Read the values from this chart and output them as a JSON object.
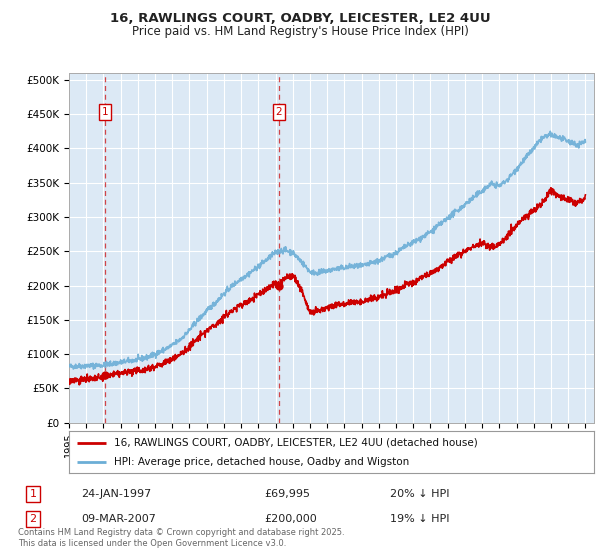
{
  "title_line1": "16, RAWLINGS COURT, OADBY, LEICESTER, LE2 4UU",
  "title_line2": "Price paid vs. HM Land Registry's House Price Index (HPI)",
  "background_color": "#dce9f5",
  "plot_bg_color": "#dce9f5",
  "grid_color": "#ffffff",
  "ylim": [
    0,
    510000
  ],
  "xlim_start": 1995.0,
  "xlim_end": 2025.5,
  "sale1_date": 1997.07,
  "sale1_price": 69995,
  "sale1_label": "1",
  "sale2_date": 2007.19,
  "sale2_price": 200000,
  "sale2_label": "2",
  "legend_line1": "16, RAWLINGS COURT, OADBY, LEICESTER, LE2 4UU (detached house)",
  "legend_line2": "HPI: Average price, detached house, Oadby and Wigston",
  "footer": "Contains HM Land Registry data © Crown copyright and database right 2025.\nThis data is licensed under the Open Government Licence v3.0.",
  "hpi_color": "#6baed6",
  "price_color": "#cc0000",
  "ytick_labels": [
    "£0",
    "£50K",
    "£100K",
    "£150K",
    "£200K",
    "£250K",
    "£300K",
    "£350K",
    "£400K",
    "£450K",
    "£500K"
  ],
  "ytick_values": [
    0,
    50000,
    100000,
    150000,
    200000,
    250000,
    300000,
    350000,
    400000,
    450000,
    500000
  ],
  "hpi_key_years": [
    1995.0,
    1995.5,
    1996.0,
    1996.5,
    1997.0,
    1997.5,
    1998.0,
    1998.5,
    1999.0,
    1999.5,
    2000.0,
    2000.5,
    2001.0,
    2001.5,
    2002.0,
    2002.5,
    2003.0,
    2003.5,
    2004.0,
    2004.5,
    2005.0,
    2005.5,
    2006.0,
    2006.5,
    2007.0,
    2007.5,
    2008.0,
    2008.5,
    2009.0,
    2009.5,
    2010.0,
    2010.5,
    2011.0,
    2011.5,
    2012.0,
    2012.5,
    2013.0,
    2013.5,
    2014.0,
    2014.5,
    2015.0,
    2015.5,
    2016.0,
    2016.5,
    2017.0,
    2017.5,
    2018.0,
    2018.5,
    2019.0,
    2019.5,
    2020.0,
    2020.5,
    2021.0,
    2021.5,
    2022.0,
    2022.5,
    2023.0,
    2023.5,
    2024.0,
    2024.5,
    2025.0
  ],
  "hpi_key_vals": [
    82000,
    82500,
    83000,
    83500,
    84000,
    86000,
    88000,
    90000,
    92000,
    95000,
    100000,
    106000,
    113000,
    122000,
    135000,
    150000,
    163000,
    175000,
    188000,
    200000,
    210000,
    218000,
    228000,
    238000,
    248000,
    252000,
    248000,
    235000,
    220000,
    218000,
    222000,
    224000,
    226000,
    228000,
    228000,
    232000,
    236000,
    242000,
    248000,
    256000,
    263000,
    270000,
    278000,
    288000,
    298000,
    308000,
    318000,
    328000,
    338000,
    348000,
    345000,
    355000,
    370000,
    385000,
    400000,
    415000,
    420000,
    415000,
    410000,
    405000,
    410000
  ],
  "price_key_years": [
    1995.0,
    1995.5,
    1996.0,
    1996.5,
    1997.0,
    1997.5,
    1998.0,
    1998.5,
    1999.0,
    1999.5,
    2000.0,
    2000.5,
    2001.0,
    2001.5,
    2002.0,
    2002.5,
    2003.0,
    2003.5,
    2004.0,
    2004.5,
    2005.0,
    2005.5,
    2006.0,
    2006.5,
    2007.0,
    2007.19,
    2007.5,
    2008.0,
    2008.5,
    2009.0,
    2009.5,
    2010.0,
    2010.5,
    2011.0,
    2011.5,
    2012.0,
    2012.5,
    2013.0,
    2013.5,
    2014.0,
    2014.5,
    2015.0,
    2015.5,
    2016.0,
    2016.5,
    2017.0,
    2017.5,
    2018.0,
    2018.5,
    2019.0,
    2019.5,
    2020.0,
    2020.5,
    2021.0,
    2021.5,
    2022.0,
    2022.5,
    2023.0,
    2023.5,
    2024.0,
    2024.5,
    2025.0
  ],
  "price_key_vals": [
    62000,
    62500,
    63000,
    64000,
    66000,
    70000,
    72000,
    74000,
    76000,
    78000,
    82000,
    87000,
    93000,
    100000,
    111000,
    123000,
    134000,
    143000,
    154000,
    164000,
    172000,
    178000,
    187000,
    195000,
    203000,
    200000,
    210000,
    215000,
    195000,
    160000,
    162000,
    168000,
    172000,
    174000,
    176000,
    176000,
    180000,
    183000,
    188000,
    193000,
    200000,
    205000,
    211000,
    218000,
    226000,
    234000,
    242000,
    250000,
    258000,
    262000,
    255000,
    260000,
    275000,
    287000,
    300000,
    310000,
    320000,
    340000,
    330000,
    325000,
    320000,
    328000
  ]
}
